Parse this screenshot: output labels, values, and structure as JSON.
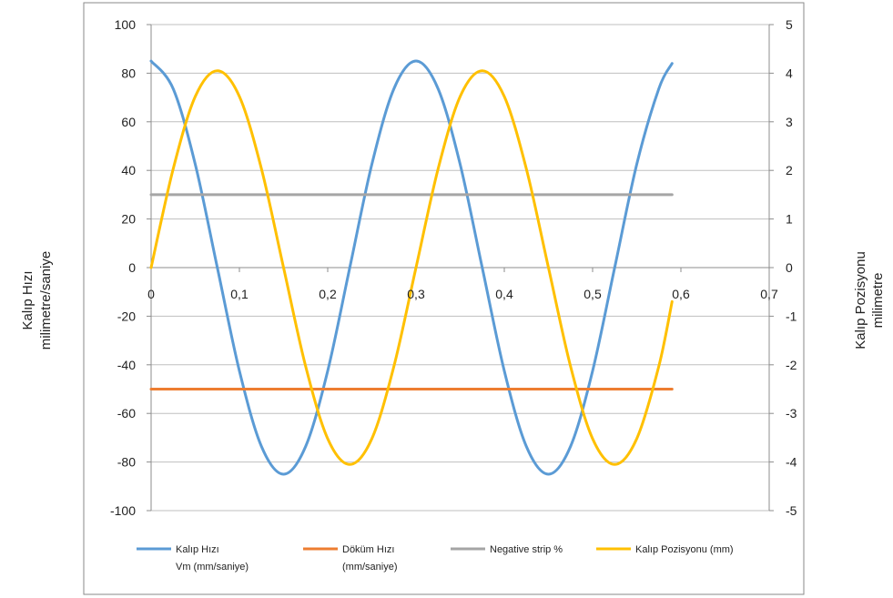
{
  "chart_data": {
    "type": "line",
    "y_left_label_line1": "Kalıp Hızı",
    "y_left_label_line2": "milimetre/saniye",
    "y_right_label_line1": "Kalıp Pozisyonu",
    "y_right_label_line2": "milimetre",
    "xlim": [
      0,
      0.7
    ],
    "ylim_left": [
      -100,
      100
    ],
    "ylim_right": [
      -5,
      5
    ],
    "x_ticks": [
      "0",
      "0,1",
      "0,2",
      "0,3",
      "0,4",
      "0,5",
      "0,6",
      "0,7"
    ],
    "y_left_ticks": [
      "100",
      "80",
      "60",
      "40",
      "20",
      "0",
      "-20",
      "-40",
      "-60",
      "-80",
      "-100"
    ],
    "y_right_ticks": [
      "5",
      "4",
      "3",
      "2",
      "1",
      "0",
      "-1",
      "-2",
      "-3",
      "-4",
      "-5"
    ],
    "grid": "horizontal",
    "legend_position": "bottom",
    "series": [
      {
        "name_line1": "Kalıp Hızı",
        "name_line2": "Vm (mm/saniye)",
        "axis": "left",
        "color": "#5b9bd5",
        "x": [
          0,
          0.025,
          0.05,
          0.075,
          0.1,
          0.125,
          0.15,
          0.175,
          0.2,
          0.225,
          0.25,
          0.275,
          0.3,
          0.325,
          0.35,
          0.375,
          0.4,
          0.425,
          0.45,
          0.475,
          0.5,
          0.525,
          0.55,
          0.575,
          0.59
        ],
        "y": [
          85,
          73.6,
          42.5,
          0,
          -42.5,
          -73.6,
          -85,
          -73.6,
          -42.5,
          0,
          42.5,
          73.6,
          85,
          73.6,
          42.5,
          0,
          -42.5,
          -73.6,
          -85,
          -73.6,
          -42.5,
          0,
          42.5,
          73.6,
          84
        ]
      },
      {
        "name_line1": "Döküm Hızı",
        "name_line2": "(mm/saniye)",
        "axis": "left",
        "color": "#ed7d31",
        "x": [
          0,
          0.59
        ],
        "y": [
          -50,
          -50
        ]
      },
      {
        "name_line1": "Negative strip %",
        "name_line2": "",
        "axis": "left",
        "color": "#a5a5a5",
        "x": [
          0,
          0.59
        ],
        "y": [
          30,
          30
        ]
      },
      {
        "name_line1": "Kalıp Pozisyonu (mm)",
        "name_line2": "",
        "axis": "right",
        "color": "#ffc000",
        "x": [
          0,
          0.025,
          0.05,
          0.075,
          0.1,
          0.125,
          0.15,
          0.175,
          0.2,
          0.225,
          0.25,
          0.275,
          0.3,
          0.325,
          0.35,
          0.375,
          0.4,
          0.425,
          0.45,
          0.475,
          0.5,
          0.525,
          0.55,
          0.575,
          0.59
        ],
        "y": [
          0,
          2.03,
          3.52,
          4.05,
          3.52,
          2.03,
          0,
          -2.03,
          -3.52,
          -4.05,
          -3.52,
          -2.03,
          0,
          2.03,
          3.52,
          4.05,
          3.52,
          2.03,
          0,
          -2.03,
          -3.52,
          -4.05,
          -3.52,
          -2.03,
          -0.7
        ]
      }
    ]
  }
}
